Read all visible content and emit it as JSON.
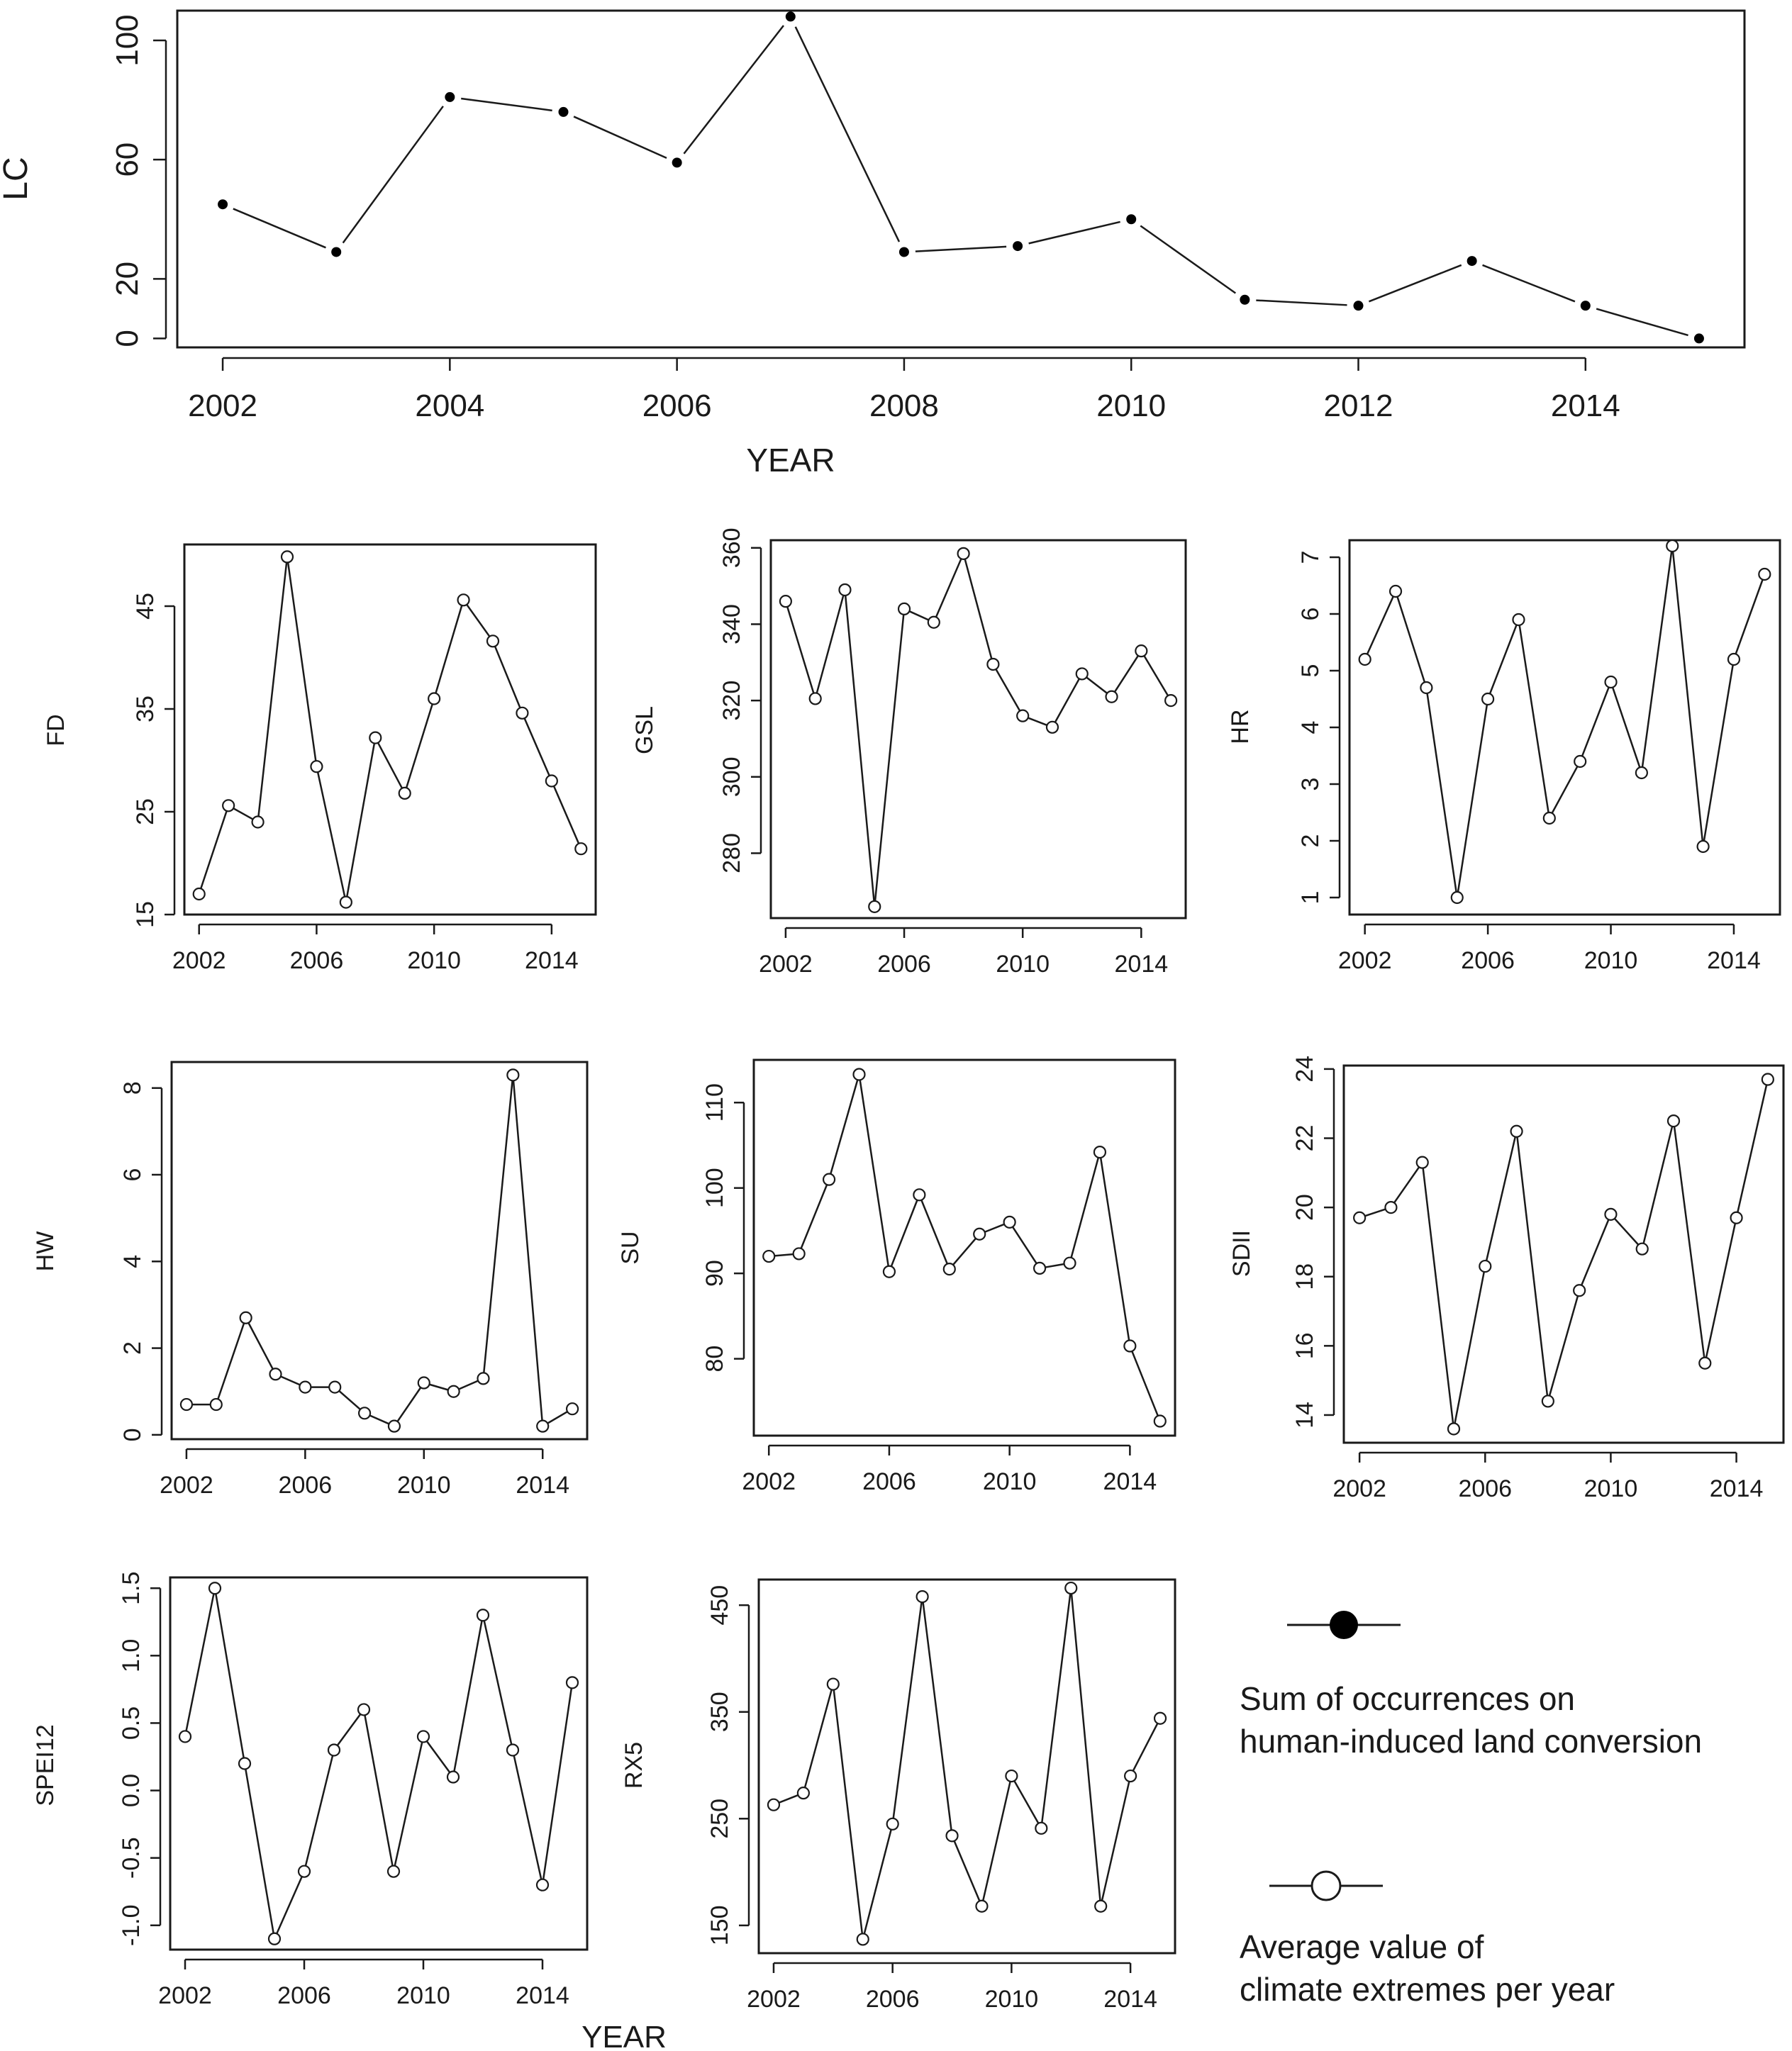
{
  "chart_data": [
    {
      "id": "lc",
      "type": "line",
      "marker": "filled",
      "gapped": true,
      "ylabel": "LC",
      "xlabel": "YEAR",
      "x": [
        2002,
        2003,
        2004,
        2005,
        2006,
        2007,
        2008,
        2009,
        2010,
        2011,
        2012,
        2013,
        2014,
        2015
      ],
      "values": [
        45,
        29,
        81,
        76,
        59,
        108,
        29,
        31,
        40,
        13,
        11,
        26,
        11,
        0
      ],
      "xlim": [
        2001.6,
        2015.4
      ],
      "ylim": [
        -3,
        110
      ],
      "xticks": [
        2002,
        2004,
        2006,
        2008,
        2010,
        2012,
        2014
      ],
      "yticks": [
        0,
        20,
        60,
        100
      ]
    },
    {
      "id": "fd",
      "type": "line",
      "marker": "open",
      "ylabel": "FD",
      "x": [
        2002,
        2003,
        2004,
        2005,
        2006,
        2007,
        2008,
        2009,
        2010,
        2011,
        2012,
        2013,
        2014,
        2015
      ],
      "values": [
        17,
        25.6,
        24,
        49.8,
        29.4,
        16.2,
        32.2,
        26.8,
        36,
        45.6,
        41.6,
        34.6,
        28,
        21.4
      ],
      "xlim": [
        2001.5,
        2015.5
      ],
      "ylim": [
        15,
        51
      ],
      "xticks": [
        2002,
        2006,
        2010,
        2014
      ],
      "yticks": [
        15,
        25,
        35,
        45
      ]
    },
    {
      "id": "gsl",
      "type": "line",
      "marker": "open",
      "ylabel": "GSL",
      "x": [
        2002,
        2003,
        2004,
        2005,
        2006,
        2007,
        2008,
        2009,
        2010,
        2011,
        2012,
        2013,
        2014,
        2015
      ],
      "values": [
        346,
        320.5,
        349,
        266,
        344,
        340.5,
        358.5,
        329.5,
        316,
        313,
        327,
        321,
        333,
        320
      ],
      "xlim": [
        2001.5,
        2015.5
      ],
      "ylim": [
        263,
        362
      ],
      "xticks": [
        2002,
        2006,
        2010,
        2014
      ],
      "yticks": [
        280,
        300,
        320,
        340,
        360
      ]
    },
    {
      "id": "hr",
      "type": "line",
      "marker": "open",
      "ylabel": "HR",
      "x": [
        2002,
        2003,
        2004,
        2005,
        2006,
        2007,
        2008,
        2009,
        2010,
        2011,
        2012,
        2013,
        2014,
        2015
      ],
      "values": [
        5.2,
        6.4,
        4.7,
        1,
        4.5,
        5.9,
        2.4,
        3.4,
        4.8,
        3.2,
        7.2,
        1.9,
        5.2,
        6.7
      ],
      "xlim": [
        2001.5,
        2015.5
      ],
      "ylim": [
        0.7,
        7.3
      ],
      "xticks": [
        2002,
        2006,
        2010,
        2014
      ],
      "yticks": [
        1,
        2,
        3,
        4,
        5,
        6,
        7
      ]
    },
    {
      "id": "hw",
      "type": "line",
      "marker": "open",
      "ylabel": "HW",
      "x": [
        2002,
        2003,
        2004,
        2005,
        2006,
        2007,
        2008,
        2009,
        2010,
        2011,
        2012,
        2013,
        2014,
        2015
      ],
      "values": [
        0.7,
        0.7,
        2.7,
        1.4,
        1.1,
        1.1,
        0.5,
        0.2,
        1.2,
        1,
        1.3,
        8.3,
        0.2,
        0.6
      ],
      "xlim": [
        2001.5,
        2015.5
      ],
      "ylim": [
        -0.1,
        8.6
      ],
      "xticks": [
        2002,
        2006,
        2010,
        2014
      ],
      "yticks": [
        0,
        2,
        4,
        6,
        8
      ]
    },
    {
      "id": "su",
      "type": "line",
      "marker": "open",
      "ylabel": "SU",
      "x": [
        2002,
        2003,
        2004,
        2005,
        2006,
        2007,
        2008,
        2009,
        2010,
        2011,
        2012,
        2013,
        2014,
        2015
      ],
      "values": [
        92,
        92.3,
        101,
        113.3,
        90.2,
        99.2,
        90.5,
        94.6,
        96,
        90.6,
        91.2,
        104.2,
        81.5,
        72.7
      ],
      "xlim": [
        2001.5,
        2015.5
      ],
      "ylim": [
        71,
        115
      ],
      "xticks": [
        2002,
        2006,
        2010,
        2014
      ],
      "yticks": [
        80,
        90,
        100,
        110
      ]
    },
    {
      "id": "sdii",
      "type": "line",
      "marker": "open",
      "ylabel": "SDII",
      "x": [
        2002,
        2003,
        2004,
        2005,
        2006,
        2007,
        2008,
        2009,
        2010,
        2011,
        2012,
        2013,
        2014,
        2015
      ],
      "values": [
        19.7,
        20,
        21.3,
        13.6,
        18.3,
        22.2,
        14.4,
        17.6,
        19.8,
        18.8,
        22.5,
        15.5,
        19.7,
        23.7
      ],
      "xlim": [
        2001.5,
        2015.5
      ],
      "ylim": [
        13.2,
        24.1
      ],
      "xticks": [
        2002,
        2006,
        2010,
        2014
      ],
      "yticks": [
        14,
        16,
        18,
        20,
        22,
        24
      ]
    },
    {
      "id": "spei12",
      "type": "line",
      "marker": "open",
      "ylabel": "SPEI12",
      "xlabel": "YEAR",
      "x": [
        2002,
        2003,
        2004,
        2005,
        2006,
        2007,
        2008,
        2009,
        2010,
        2011,
        2012,
        2013,
        2014,
        2015
      ],
      "values": [
        0.4,
        1.5,
        0.2,
        -1.1,
        -0.6,
        0.3,
        0.6,
        -0.6,
        0.4,
        0.1,
        1.3,
        0.3,
        -0.7,
        0.8
      ],
      "xlim": [
        2001.5,
        2015.5
      ],
      "ylim": [
        -1.18,
        1.58
      ],
      "xticks": [
        2002,
        2006,
        2010,
        2014
      ],
      "yticks": [
        -1.0,
        -0.5,
        0.0,
        0.5,
        1.0,
        1.5
      ],
      "ytick_labels": [
        "-1.0",
        "-0.5",
        "0.0",
        "0.5",
        "1.0",
        "1.5"
      ]
    },
    {
      "id": "rx5",
      "type": "line",
      "marker": "open",
      "ylabel": "RX5",
      "x": [
        2002,
        2003,
        2004,
        2005,
        2006,
        2007,
        2008,
        2009,
        2010,
        2011,
        2012,
        2013,
        2014,
        2015
      ],
      "values": [
        263,
        274,
        376,
        137,
        245,
        458,
        234,
        168,
        290,
        241,
        466,
        168,
        290,
        344
      ],
      "xlim": [
        2001.5,
        2015.5
      ],
      "ylim": [
        124,
        474
      ],
      "xticks": [
        2002,
        2006,
        2010,
        2014
      ],
      "yticks": [
        150,
        250,
        350,
        450
      ]
    }
  ],
  "legend": {
    "filled_label_line1": "Sum of occurrences on",
    "filled_label_line2": "human-induced land conversion",
    "open_label_line1": "Average value of",
    "open_label_line2": "climate extremes per year"
  }
}
